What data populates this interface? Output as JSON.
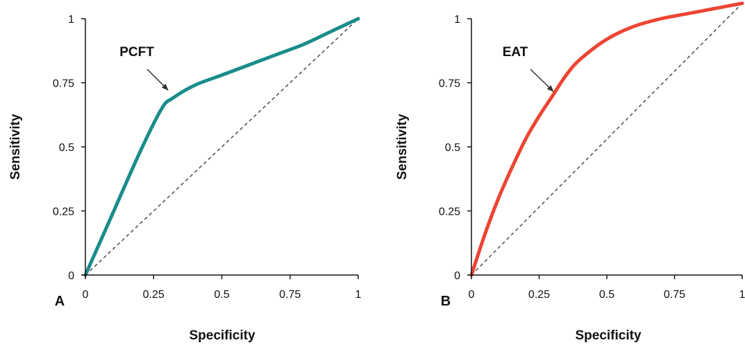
{
  "chart_data": [
    {
      "type": "line",
      "panel_label": "A",
      "xlabel": "Specificity",
      "ylabel": "Sensitivity",
      "xlim": [
        0,
        1
      ],
      "ylim": [
        0,
        1
      ],
      "x_ticks": [
        "0",
        "0.25",
        "0.5",
        "0.75",
        "1"
      ],
      "y_ticks": [
        "0",
        "0.25",
        "0.5",
        "0.75",
        "1"
      ],
      "grid": false,
      "series": [
        {
          "name": "PCFT",
          "color": "#1a8c8c",
          "x": [
            0,
            0.1,
            0.2,
            0.28,
            0.32,
            0.4,
            0.5,
            0.6,
            0.7,
            0.8,
            0.9,
            1.0
          ],
          "y": [
            0,
            0.24,
            0.48,
            0.65,
            0.69,
            0.74,
            0.78,
            0.82,
            0.86,
            0.9,
            0.95,
            1.0
          ]
        },
        {
          "name": "",
          "color": "#555555",
          "dashed": true,
          "x": [
            0,
            1
          ],
          "y": [
            0,
            1
          ]
        }
      ],
      "annotation": {
        "text": "PCFT",
        "points_to": [
          0.31,
          0.68
        ]
      }
    },
    {
      "type": "line",
      "panel_label": "B",
      "xlabel": "Specificity",
      "ylabel": "Sensitivity",
      "xlim": [
        0,
        1
      ],
      "ylim": [
        0,
        1
      ],
      "x_ticks": [
        "0",
        "0.25",
        "0.5",
        "0.75",
        "1"
      ],
      "y_ticks": [
        "0",
        "0.25",
        "0.5",
        "0.75",
        "1"
      ],
      "grid": false,
      "series": [
        {
          "name": "EAT",
          "color": "#ee4433",
          "x": [
            0,
            0.05,
            0.1,
            0.15,
            0.2,
            0.25,
            0.3,
            0.35,
            0.4,
            0.5,
            0.6,
            0.7,
            0.8,
            0.9,
            1.0
          ],
          "y": [
            0,
            0.16,
            0.3,
            0.42,
            0.53,
            0.62,
            0.7,
            0.78,
            0.84,
            0.92,
            0.97,
            1.0,
            1.02,
            1.04,
            1.06
          ]
        },
        {
          "name": "",
          "color": "#555555",
          "dashed": true,
          "x": [
            0,
            1
          ],
          "y": [
            0,
            1.06
          ]
        }
      ],
      "annotation": {
        "text": "EAT",
        "points_to": [
          0.31,
          0.7
        ]
      }
    }
  ]
}
